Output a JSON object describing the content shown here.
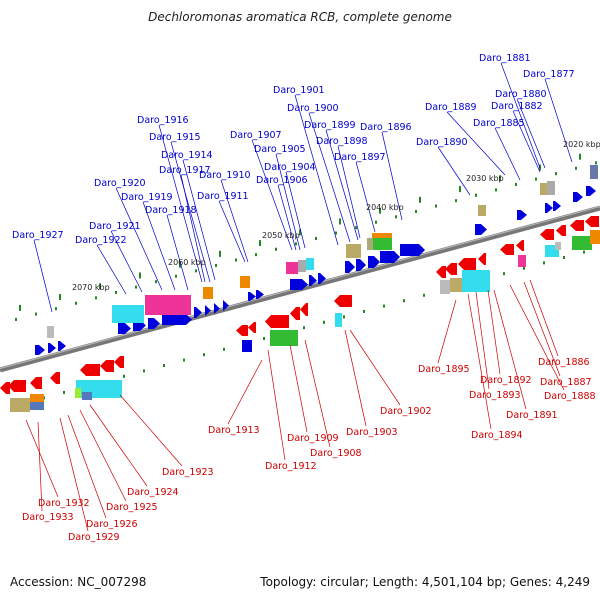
{
  "title": "Dechloromonas aromatica RCB, complete genome",
  "footer": {
    "accession_label": "Accession:",
    "accession": "NC_007298",
    "topology_label": "Topology:",
    "topology": "circular",
    "length_label": "Length:",
    "length": "4,501,104 bp",
    "genes_label": "Genes:",
    "genes": "4,249"
  },
  "scale_labels": [
    "2020 kbp",
    "2030 kbp",
    "2040 kbp",
    "2050 kbp",
    "2060 kbp",
    "2070 kbp"
  ],
  "colors": {
    "forward_gene": "#0000dd",
    "reverse_gene": "#ee0000",
    "forward_label": "#0000cc",
    "reverse_label": "#cc0000",
    "backbone": "#888888",
    "tick": "#228822"
  },
  "forward_labels": [
    "Daro_1881",
    "Daro_1877",
    "Daro_1880",
    "Daro_1882",
    "Daro_1889",
    "Daro_1885",
    "Daro_1890",
    "Daro_1901",
    "Daro_1900",
    "Daro_1899",
    "Daro_1898",
    "Daro_1896",
    "Daro_1897",
    "Daro_1907",
    "Daro_1905",
    "Daro_1904",
    "Daro_1906",
    "Daro_1916",
    "Daro_1915",
    "Daro_1914",
    "Daro_1917",
    "Daro_1910",
    "Daro_1920",
    "Daro_1919",
    "Daro_1911",
    "Daro_1918",
    "Daro_1921",
    "Daro_1922",
    "Daro_1927"
  ],
  "reverse_labels": [
    "Daro_1886",
    "Daro_1887",
    "Daro_1888",
    "Daro_1891",
    "Daro_1892",
    "Daro_1893",
    "Daro_1894",
    "Daro_1895",
    "Daro_1902",
    "Daro_1903",
    "Daro_1908",
    "Daro_1909",
    "Daro_1912",
    "Daro_1913",
    "Daro_1923",
    "Daro_1924",
    "Daro_1925",
    "Daro_1926",
    "Daro_1929",
    "Daro_1932",
    "Daro_1933"
  ]
}
